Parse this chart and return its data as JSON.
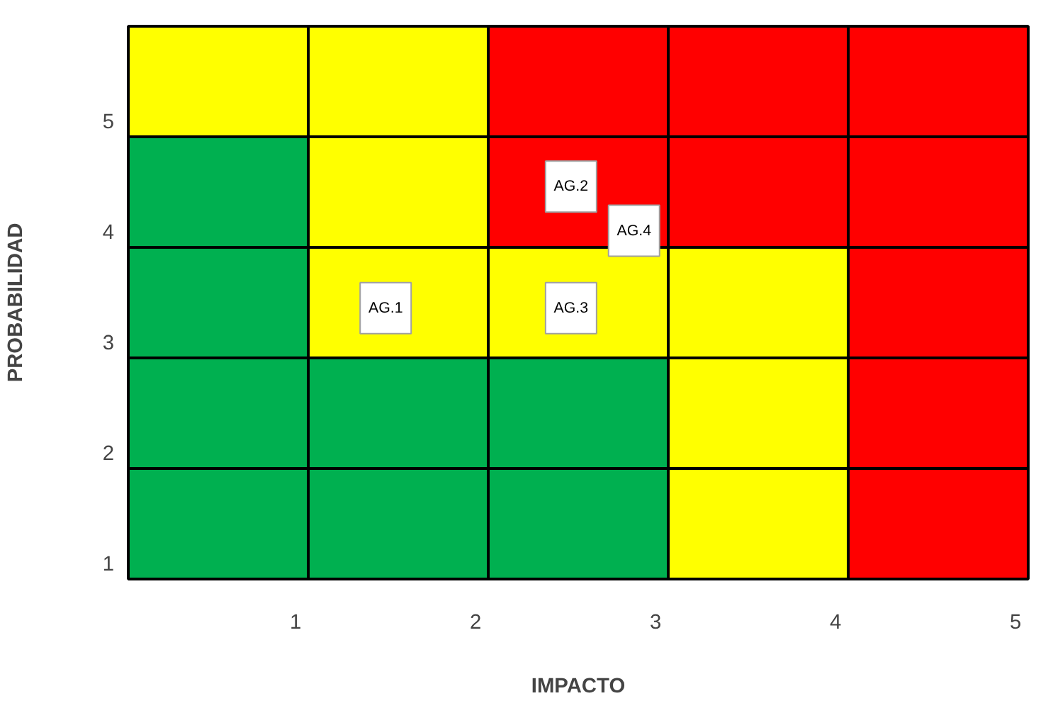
{
  "chart_data": {
    "type": "bar",
    "stacked": true,
    "xlabel": "IMPACTO",
    "ylabel": "PROBABILIDAD",
    "xlim": [
      0.07,
      5.07
    ],
    "ylim": [
      0.85,
      5.85
    ],
    "xticks": [
      1,
      2,
      3,
      4,
      5
    ],
    "yticks": [
      1,
      2,
      3,
      4,
      5
    ],
    "x": [
      0.57,
      1.57,
      2.57,
      3.57,
      4.57
    ],
    "marker": "square",
    "series": [
      {
        "values": [
          1.85,
          1.85,
          1.85,
          1.85,
          1.85
        ],
        "colors": [
          "#00b050",
          "#00b050",
          "#00b050",
          "#ffff00",
          "#ff0000"
        ]
      },
      {
        "values": [
          1,
          1,
          1,
          1,
          1
        ],
        "colors": [
          "#00b050",
          "#00b050",
          "#00b050",
          "#ffff00",
          "#ff0000"
        ]
      },
      {
        "values": [
          1,
          1,
          1,
          1,
          1
        ],
        "colors": [
          "#00b050",
          "#ffff00",
          "#ffff00",
          "#ffff00",
          "#ff0000"
        ]
      },
      {
        "values": [
          1,
          1,
          1,
          1,
          1
        ],
        "colors": [
          "#00b050",
          "#ffff00",
          "#ff0000",
          "#ff0000",
          "#ff0000"
        ]
      },
      {
        "values": [
          1,
          1,
          1,
          1,
          1
        ],
        "colors": [
          "#ffff00",
          "#ffff00",
          "#ff0000",
          "#ff0000",
          "#ff0000"
        ]
      },
      {
        "type": "scatter",
        "x": [
          1.5,
          2.53,
          2.88,
          2.53
        ],
        "values": [
          3.3,
          4.4,
          4.0,
          3.3
        ],
        "value_labels": [
          "AG.1",
          "AG.2",
          "AG.4",
          "AG.3"
        ],
        "color": "#ffffff"
      }
    ]
  }
}
